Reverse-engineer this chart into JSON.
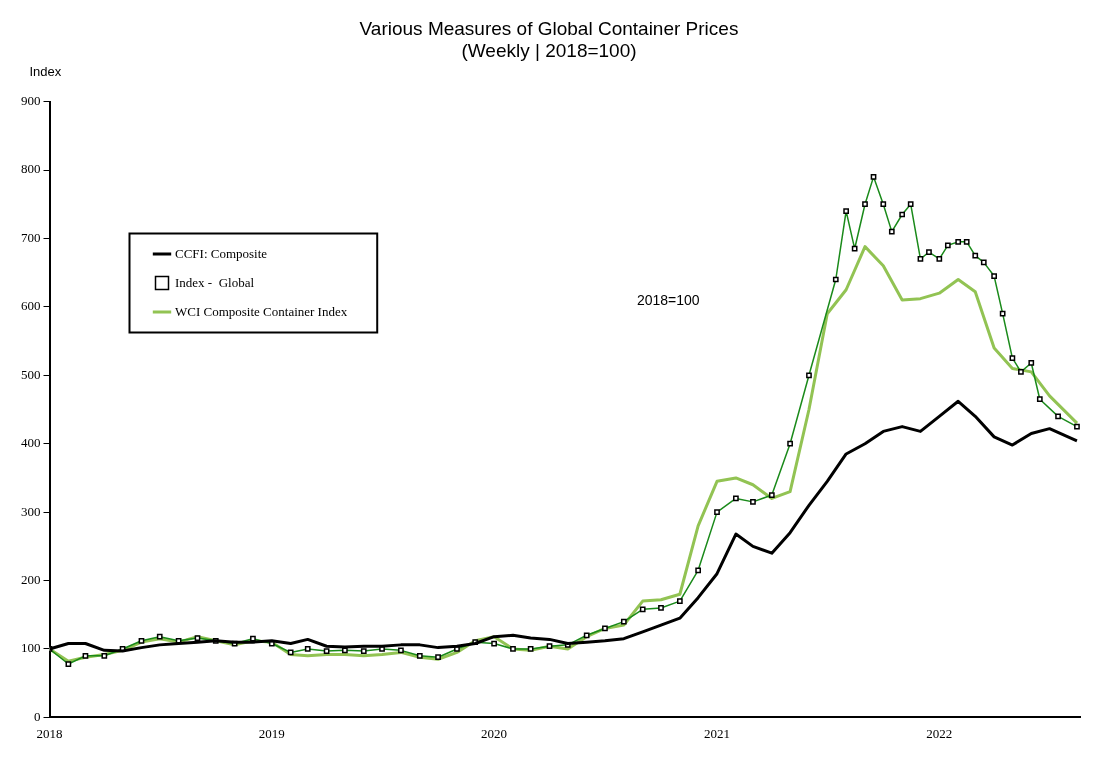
{
  "chart_data": {
    "type": "line",
    "title": "Various Measures of Global Container Prices",
    "subtitle": "(Weekly | 2018=100)",
    "ylabel": "Index",
    "annotations": [
      "2018=100"
    ],
    "xlim": [
      "2018-01-01",
      "2022-08-20"
    ],
    "xticks": [
      {
        "value": "2018-01-01",
        "label": "2018"
      },
      {
        "value": "2019-01-01",
        "label": "2019"
      },
      {
        "value": "2020-01-01",
        "label": "2020"
      },
      {
        "value": "2021-01-01",
        "label": "2021"
      },
      {
        "value": "2022-01-01",
        "label": "2022"
      }
    ],
    "ylim": [
      0,
      900
    ],
    "yticks": [
      0,
      100,
      200,
      300,
      400,
      500,
      600,
      700,
      800,
      900
    ],
    "grid": false,
    "legend": "top left",
    "series": [
      {
        "name": "CCFI: Composite",
        "color": "#000000",
        "marker": "none",
        "x": [
          "2018-01-01",
          "2018-02-01",
          "2018-03-01",
          "2018-04-01",
          "2018-05-01",
          "2018-06-01",
          "2018-07-01",
          "2018-08-01",
          "2018-09-01",
          "2018-10-01",
          "2018-11-01",
          "2018-12-01",
          "2019-01-01",
          "2019-02-01",
          "2019-03-01",
          "2019-04-01",
          "2019-05-01",
          "2019-06-01",
          "2019-07-01",
          "2019-08-01",
          "2019-09-01",
          "2019-10-01",
          "2019-11-01",
          "2019-12-01",
          "2020-01-01",
          "2020-02-01",
          "2020-03-01",
          "2020-04-01",
          "2020-05-01",
          "2020-06-01",
          "2020-07-01",
          "2020-08-01",
          "2020-09-01",
          "2020-10-01",
          "2020-11-01",
          "2020-12-01",
          "2021-01-01",
          "2021-02-01",
          "2021-03-01",
          "2021-04-01",
          "2021-05-01",
          "2021-06-01",
          "2021-07-01",
          "2021-08-01",
          "2021-09-01",
          "2021-10-01",
          "2021-11-01",
          "2021-12-01",
          "2022-01-01",
          "2022-02-01",
          "2022-03-01",
          "2022-04-01",
          "2022-05-01",
          "2022-06-01",
          "2022-07-01",
          "2022-08-15"
        ],
        "values": [
          100,
          108,
          108,
          98,
          97,
          102,
          106,
          108,
          110,
          112,
          110,
          110,
          112,
          108,
          114,
          104,
          103,
          104,
          104,
          106,
          106,
          102,
          104,
          108,
          118,
          120,
          116,
          114,
          108,
          110,
          112,
          115,
          125,
          135,
          145,
          175,
          210,
          268,
          250,
          240,
          270,
          310,
          345,
          385,
          400,
          418,
          425,
          418,
          440,
          462,
          440,
          410,
          398,
          415,
          422,
          404
        ]
      },
      {
        "name": "Index -  Global",
        "color": "#1a8a1a",
        "marker": "square",
        "x": [
          "2018-01-01",
          "2018-02-01",
          "2018-03-01",
          "2018-04-01",
          "2018-05-01",
          "2018-06-01",
          "2018-07-01",
          "2018-08-01",
          "2018-09-01",
          "2018-10-01",
          "2018-11-01",
          "2018-12-01",
          "2019-01-01",
          "2019-02-01",
          "2019-03-01",
          "2019-04-01",
          "2019-05-01",
          "2019-06-01",
          "2019-07-01",
          "2019-08-01",
          "2019-09-01",
          "2019-10-01",
          "2019-11-01",
          "2019-12-01",
          "2020-01-01",
          "2020-02-01",
          "2020-03-01",
          "2020-04-01",
          "2020-05-01",
          "2020-06-01",
          "2020-07-01",
          "2020-08-01",
          "2020-09-01",
          "2020-10-01",
          "2020-11-01",
          "2020-12-01",
          "2021-01-01",
          "2021-02-01",
          "2021-03-01",
          "2021-04-01",
          "2021-05-01",
          "2021-06-01",
          "2021-07-15",
          "2021-08-01",
          "2021-08-15",
          "2021-09-01",
          "2021-09-15",
          "2021-10-01",
          "2021-10-15",
          "2021-11-01",
          "2021-11-15",
          "2021-12-01",
          "2021-12-15",
          "2022-01-01",
          "2022-01-15",
          "2022-02-01",
          "2022-02-15",
          "2022-03-01",
          "2022-03-15",
          "2022-04-01",
          "2022-04-15",
          "2022-05-01",
          "2022-05-15",
          "2022-06-01",
          "2022-06-15",
          "2022-07-15",
          "2022-08-15"
        ],
        "values": [
          100,
          78,
          90,
          90,
          100,
          112,
          118,
          112,
          116,
          112,
          108,
          115,
          108,
          95,
          100,
          97,
          98,
          97,
          100,
          98,
          90,
          88,
          100,
          110,
          108,
          100,
          100,
          104,
          106,
          120,
          130,
          140,
          158,
          160,
          170,
          215,
          300,
          320,
          315,
          325,
          400,
          500,
          640,
          740,
          685,
          750,
          790,
          750,
          710,
          735,
          750,
          670,
          680,
          670,
          690,
          695,
          695,
          675,
          665,
          645,
          590,
          525,
          505,
          518,
          465,
          440,
          425
        ]
      },
      {
        "name": "WCI Composite Container Index",
        "color": "#92c353",
        "marker": "none",
        "x": [
          "2018-01-01",
          "2018-02-01",
          "2018-03-01",
          "2018-04-01",
          "2018-05-01",
          "2018-06-01",
          "2018-07-01",
          "2018-08-01",
          "2018-09-01",
          "2018-10-01",
          "2018-11-01",
          "2018-12-01",
          "2019-01-01",
          "2019-02-01",
          "2019-03-01",
          "2019-04-01",
          "2019-05-01",
          "2019-06-01",
          "2019-07-01",
          "2019-08-01",
          "2019-09-01",
          "2019-10-01",
          "2019-11-01",
          "2019-12-01",
          "2020-01-01",
          "2020-02-01",
          "2020-03-01",
          "2020-04-01",
          "2020-05-01",
          "2020-06-01",
          "2020-07-01",
          "2020-08-01",
          "2020-09-01",
          "2020-10-01",
          "2020-11-01",
          "2020-12-01",
          "2021-01-01",
          "2021-02-01",
          "2021-03-01",
          "2021-04-01",
          "2021-05-01",
          "2021-06-01",
          "2021-07-01",
          "2021-08-01",
          "2021-09-01",
          "2021-10-01",
          "2021-11-01",
          "2021-12-01",
          "2022-01-01",
          "2022-02-01",
          "2022-03-01",
          "2022-04-01",
          "2022-05-01",
          "2022-06-01",
          "2022-07-01",
          "2022-08-15"
        ],
        "values": [
          100,
          82,
          88,
          92,
          98,
          110,
          115,
          110,
          118,
          112,
          106,
          112,
          110,
          92,
          90,
          92,
          92,
          90,
          92,
          95,
          88,
          85,
          95,
          112,
          118,
          100,
          98,
          104,
          100,
          118,
          130,
          135,
          170,
          172,
          180,
          280,
          345,
          350,
          340,
          320,
          330,
          450,
          590,
          625,
          688,
          660,
          610,
          612,
          620,
          640,
          622,
          540,
          510,
          505,
          470,
          430
        ]
      }
    ]
  }
}
